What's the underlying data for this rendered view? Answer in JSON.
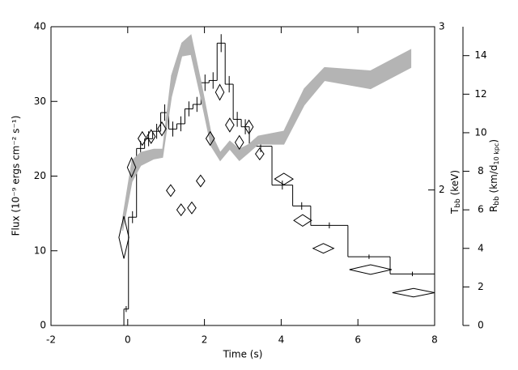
{
  "chart_data": {
    "type": "histogram",
    "xlabel": "Time (s)",
    "ylabel": "Flux (10⁻⁹ ergs cm⁻² s⁻¹)",
    "y2label": [
      "T",
      "bb",
      " (keV)"
    ],
    "y3label": [
      "R",
      "bb",
      " (km/d",
      "10 kpc",
      ")"
    ],
    "xlim": [
      -2,
      8
    ],
    "xticks": [
      -2,
      0,
      2,
      4,
      6,
      8
    ],
    "ylim": [
      0,
      40
    ],
    "yticks": [
      0,
      10,
      20,
      30,
      40
    ],
    "y2lim": [
      1.17,
      3.0
    ],
    "y2ticks": [
      2,
      3
    ],
    "y3lim": [
      0,
      15.5
    ],
    "y3ticks": [
      0,
      2,
      4,
      6,
      8,
      10,
      12,
      14
    ],
    "series": [
      {
        "type": "histogram",
        "color": "#000000",
        "bins": [
          -0.1,
          0.02,
          0.23,
          0.44,
          0.65,
          0.86,
          1.07,
          1.28,
          1.49,
          1.7,
          1.91,
          2.12,
          2.33,
          2.54,
          2.75,
          2.96,
          3.17,
          3.76,
          4.3,
          4.77,
          5.74,
          6.84,
          8.0
        ],
        "values": [
          2.2,
          14.5,
          23.7,
          25.0,
          26.0,
          28.5,
          26.3,
          27.0,
          29.0,
          29.6,
          32.5,
          32.8,
          37.8,
          32.3,
          27.6,
          26.6,
          24.0,
          18.8,
          16.0,
          13.4,
          9.2,
          6.9
        ],
        "errors": [
          0.4,
          0.8,
          1.0,
          1.0,
          1.0,
          1.1,
          1.0,
          1.0,
          1.0,
          1.0,
          1.1,
          1.1,
          1.2,
          1.1,
          1.0,
          1.0,
          0.8,
          0.6,
          0.5,
          0.4,
          0.3,
          0.3
        ]
      },
      {
        "type": "band",
        "axis": "y2",
        "color": "#b4b4b4",
        "x": [
          -0.13,
          0.11,
          0.34,
          0.68,
          0.91,
          1.14,
          1.41,
          1.65,
          1.92,
          2.17,
          2.41,
          2.66,
          2.91,
          3.16,
          3.4,
          4.07,
          4.6,
          5.13,
          6.33,
          7.38
        ],
        "upper": [
          1.83,
          2.18,
          2.23,
          2.25,
          2.25,
          2.7,
          2.9,
          2.95,
          2.65,
          2.35,
          2.23,
          2.3,
          2.25,
          2.28,
          2.33,
          2.36,
          2.62,
          2.75,
          2.73,
          2.86
        ],
        "lower": [
          1.75,
          2.05,
          2.15,
          2.19,
          2.2,
          2.57,
          2.82,
          2.83,
          2.55,
          2.27,
          2.18,
          2.25,
          2.18,
          2.23,
          2.28,
          2.28,
          2.52,
          2.67,
          2.62,
          2.75
        ]
      },
      {
        "type": "diamond",
        "axis": "y3",
        "color": "#000000",
        "x": [
          -0.1,
          0.1,
          0.38,
          0.61,
          0.89,
          1.12,
          1.39,
          1.67,
          1.9,
          2.15,
          2.4,
          2.66,
          2.91,
          3.16,
          3.44,
          4.07,
          4.56,
          5.1,
          6.33,
          7.45
        ],
        "values": [
          4.57,
          8.2,
          9.7,
          9.8,
          10.2,
          7.0,
          6.0,
          6.1,
          7.5,
          9.7,
          12.1,
          10.4,
          9.5,
          10.3,
          8.9,
          7.6,
          5.45,
          4.0,
          2.9,
          1.7
        ],
        "xerr": [
          0.13,
          0.11,
          0.11,
          0.11,
          0.11,
          0.11,
          0.11,
          0.11,
          0.11,
          0.11,
          0.11,
          0.11,
          0.11,
          0.11,
          0.11,
          0.24,
          0.23,
          0.27,
          0.55,
          0.55
        ],
        "yerr": [
          1.1,
          0.5,
          0.35,
          0.35,
          0.35,
          0.3,
          0.3,
          0.3,
          0.3,
          0.35,
          0.4,
          0.35,
          0.35,
          0.35,
          0.3,
          0.3,
          0.3,
          0.25,
          0.25,
          0.22
        ]
      }
    ]
  }
}
